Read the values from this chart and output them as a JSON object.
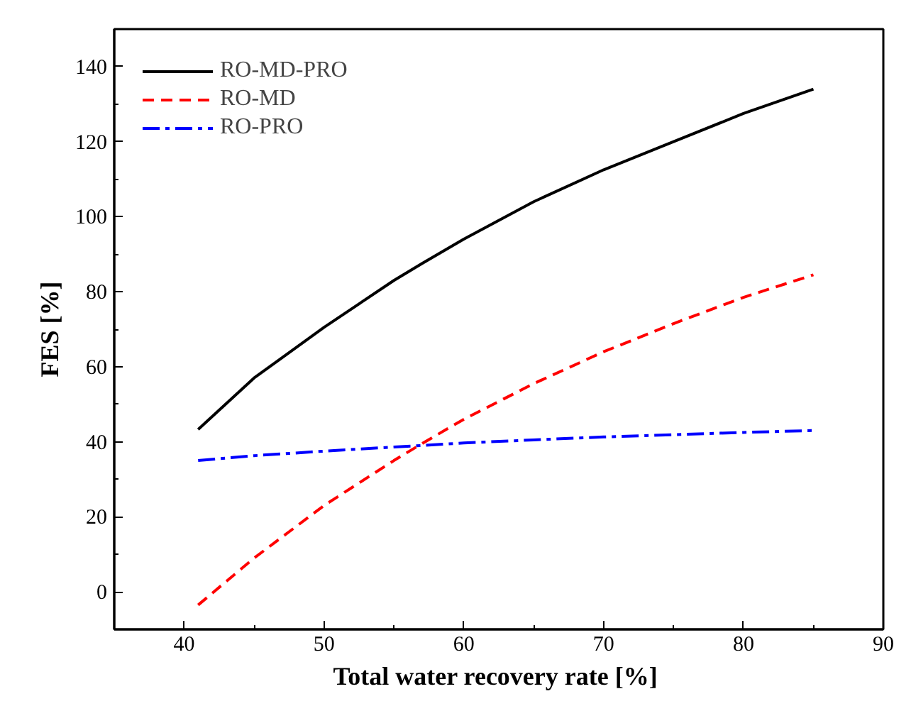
{
  "chart_data": {
    "type": "line",
    "xlabel": "Total  water recovery rate [%]",
    "ylabel": "FES [%]",
    "x": [
      41,
      45,
      50,
      55,
      57,
      60,
      65,
      70,
      75,
      80,
      85
    ],
    "series": [
      {
        "name": "RO-MD-PRO",
        "color": "#000000",
        "line_style": "solid",
        "values": [
          43.3,
          57,
          70.5,
          83,
          87.5,
          94,
          104,
          112.5,
          120,
          127.5,
          134
        ]
      },
      {
        "name": "RO-MD",
        "color": "#ff0000",
        "line_style": "dashed",
        "values": [
          -3.5,
          9,
          23,
          35,
          39.5,
          46,
          55.5,
          64,
          71.5,
          78.5,
          84.5
        ]
      },
      {
        "name": "RO-PRO",
        "color": "#0000ff",
        "line_style": "dashdot",
        "values": [
          35,
          36.3,
          37.5,
          38.6,
          39,
          39.7,
          40.5,
          41.3,
          41.9,
          42.5,
          43
        ]
      }
    ],
    "xlim": [
      35,
      90
    ],
    "ylim": [
      -10,
      150
    ],
    "xticks": [
      40,
      50,
      60,
      70,
      80,
      90
    ],
    "yticks": [
      0,
      20,
      40,
      60,
      80,
      100,
      120,
      140
    ],
    "grid": false,
    "legend": "top left",
    "marker": "none"
  }
}
